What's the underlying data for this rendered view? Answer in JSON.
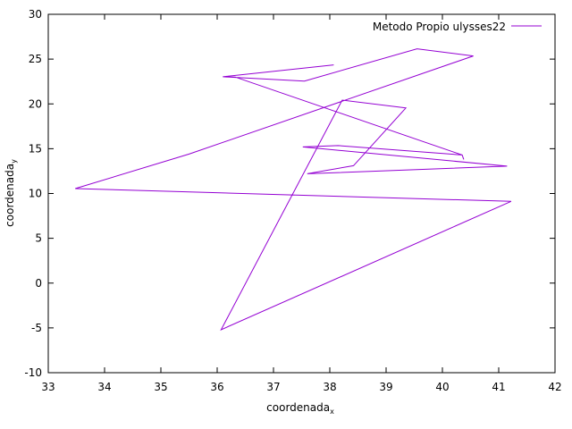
{
  "chart_data": {
    "type": "line",
    "title": "",
    "xlabel": "coordenada",
    "xlabel_sub": "x",
    "ylabel": "coordenada",
    "ylabel_sub": "y",
    "xlim": [
      33,
      42
    ],
    "ylim": [
      -10,
      30
    ],
    "xticks": [
      33,
      34,
      35,
      36,
      37,
      38,
      39,
      40,
      41,
      42
    ],
    "yticks": [
      -10,
      -5,
      0,
      5,
      10,
      15,
      20,
      25,
      30
    ],
    "grid": false,
    "legend_position": "top-right",
    "series": [
      {
        "name": "Metodo Propio ulysses22",
        "color": "#9400d3",
        "x": [
          38.07,
          36.1,
          37.55,
          39.55,
          40.55,
          35.5,
          33.48,
          41.22,
          36.07,
          38.22,
          39.35,
          38.42,
          37.6,
          41.15,
          37.52,
          38.15,
          40.35,
          40.38,
          40.35,
          36.32,
          36.1
        ],
        "y": [
          24.35,
          23.03,
          22.55,
          26.15,
          25.35,
          14.4,
          10.55,
          9.12,
          -5.2,
          20.42,
          19.55,
          13.1,
          12.2,
          13.05,
          15.2,
          15.35,
          14.3,
          13.8,
          14.3,
          23.0,
          23.03
        ]
      }
    ]
  }
}
